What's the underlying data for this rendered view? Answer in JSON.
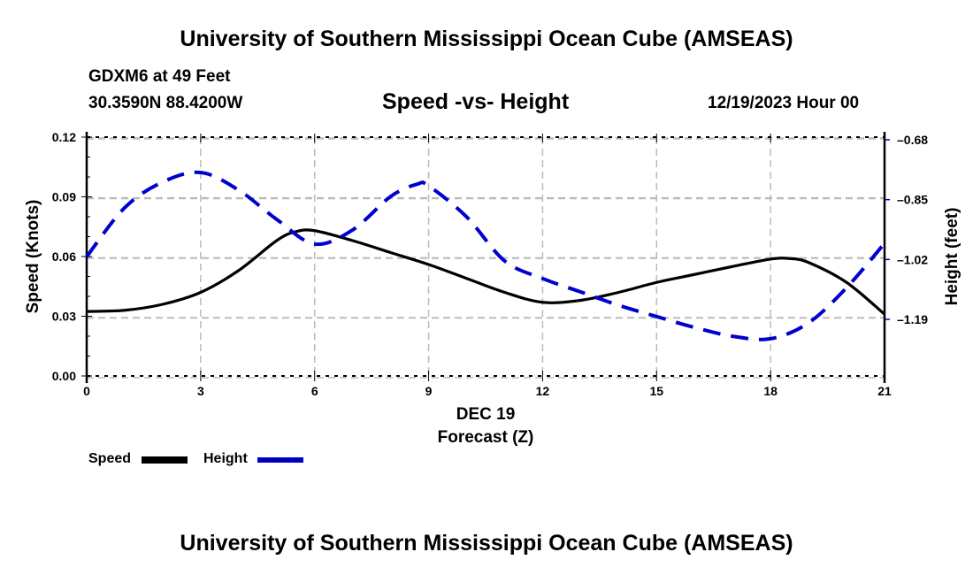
{
  "header": {
    "title": "University of Southern Mississippi Ocean Cube (AMSEAS)",
    "station": "GDXM6 at 49 Feet",
    "coordinates": "30.3590N  88.4200W",
    "chart_title": "Speed -vs- Height",
    "datetime": "12/19/2023 Hour 00"
  },
  "footer": {
    "title": "University of Southern Mississippi Ocean Cube (AMSEAS)"
  },
  "legend": {
    "speed_label": "Speed",
    "height_label": "Height"
  },
  "colors": {
    "speed": "#000000",
    "height": "#0000cc",
    "grid": "#bbbbbb"
  },
  "chart_data": {
    "type": "line",
    "title": "Speed -vs- Height",
    "xlabel": "Forecast (Z)",
    "xlabel_date": "DEC 19",
    "ylabel": "Speed (Knots)",
    "y2label": "Height (feet)",
    "xlim": [
      0,
      21
    ],
    "ylim": [
      0,
      0.12
    ],
    "y2lim": [
      -1.42,
      -0.67
    ],
    "x_ticks": [
      "0",
      "3",
      "6",
      "9",
      "12",
      "15",
      "18",
      "21"
    ],
    "y_ticks": [
      "0.00",
      "0.03",
      "0.06",
      "0.09",
      "0.12"
    ],
    "y2_ticks": [
      "-0.68",
      "-0.85",
      "-1.02",
      "-1.19"
    ],
    "grid": true,
    "legend_position": "bottom-left",
    "series": [
      {
        "name": "Speed",
        "axis": "left",
        "style": "solid",
        "x": [
          0,
          1,
          2,
          3,
          4,
          5,
          5.5,
          6,
          7,
          8,
          9,
          10,
          11,
          12,
          13,
          14,
          15,
          16,
          17,
          18,
          18.5,
          19,
          20,
          21
        ],
        "values": [
          0.0324,
          0.033,
          0.036,
          0.042,
          0.053,
          0.068,
          0.0725,
          0.073,
          0.068,
          0.062,
          0.056,
          0.049,
          0.042,
          0.037,
          0.038,
          0.042,
          0.047,
          0.051,
          0.055,
          0.0587,
          0.059,
          0.057,
          0.047,
          0.031
        ]
      },
      {
        "name": "Height",
        "axis": "right",
        "style": "dashed",
        "x": [
          0,
          1,
          2,
          3,
          4,
          5,
          6,
          7,
          8,
          8.7,
          9,
          10,
          11,
          12,
          13,
          14,
          15,
          16,
          17,
          18,
          19,
          20,
          21
        ],
        "values": [
          -1.012,
          -0.873,
          -0.8,
          -0.773,
          -0.823,
          -0.906,
          -0.976,
          -0.936,
          -0.841,
          -0.806,
          -0.811,
          -0.899,
          -1.024,
          -1.074,
          -1.112,
          -1.15,
          -1.182,
          -1.213,
          -1.238,
          -1.245,
          -1.2,
          -1.1,
          -0.974
        ]
      }
    ]
  }
}
